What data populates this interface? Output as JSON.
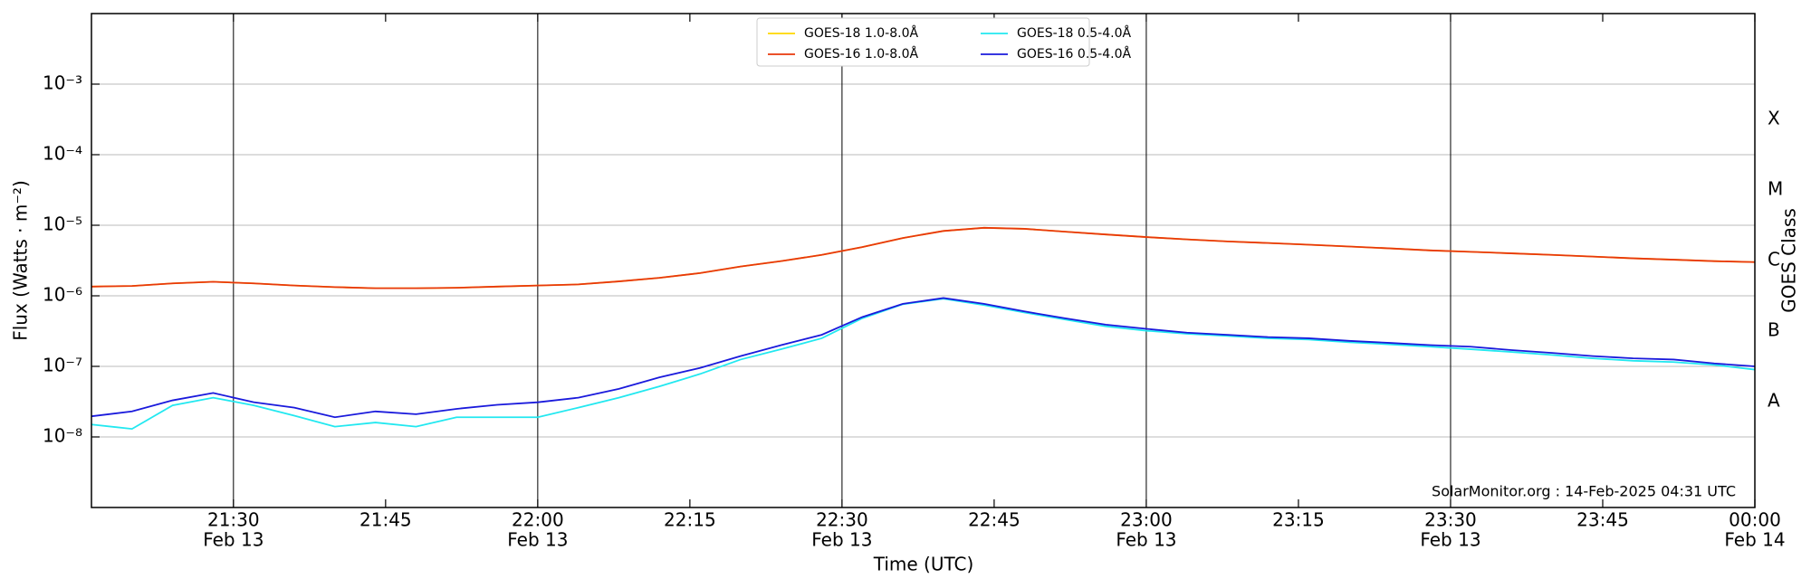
{
  "chart_data": {
    "type": "line",
    "xlabel": "Time (UTC)",
    "ylabel": "Flux (Watts · m⁻²)",
    "y2label": "GOES Class",
    "annotation": "SolarMonitor.org : 14-Feb-2025 04:31 UTC",
    "yscale": "log",
    "grid": true,
    "legend": "upper center",
    "xlim": [
      "21:16",
      "00:00"
    ],
    "ylim": [
      1e-09,
      0.01
    ],
    "y2lim": [
      1e-09,
      0.01
    ],
    "yticks": [
      {
        "value": 1e-08,
        "label": "10⁻⁸"
      },
      {
        "value": 1e-07,
        "label": "10⁻⁷"
      },
      {
        "value": 1e-06,
        "label": "10⁻⁶"
      },
      {
        "value": 1e-05,
        "label": "10⁻⁵"
      },
      {
        "value": 0.0001,
        "label": "10⁻⁴"
      },
      {
        "value": 0.001,
        "label": "10⁻³"
      }
    ],
    "y2ticks": [
      {
        "value": 3.162e-08,
        "label": "A"
      },
      {
        "value": 3.162e-07,
        "label": "B"
      },
      {
        "value": 3.162e-06,
        "label": "C"
      },
      {
        "value": 3.162e-05,
        "label": "M"
      },
      {
        "value": 0.0003162,
        "label": "X"
      }
    ],
    "xticks": [
      {
        "value": "21:30",
        "label": "21:30",
        "sublabel": "Feb 13"
      },
      "21:45",
      {
        "value": "22:00",
        "label": "22:00",
        "sublabel": "Feb 13"
      },
      "22:15",
      {
        "value": "22:30",
        "label": "22:30",
        "sublabel": "Feb 13"
      },
      "22:45",
      {
        "value": "23:00",
        "label": "23:00",
        "sublabel": "Feb 13"
      },
      "23:15",
      {
        "value": "23:30",
        "label": "23:30",
        "sublabel": "Feb 13"
      },
      "23:45",
      {
        "value": "00:00",
        "label": "00:00",
        "sublabel": "Feb 14"
      }
    ],
    "x": [
      "21:16",
      "21:20",
      "21:24",
      "21:28",
      "21:32",
      "21:36",
      "21:40",
      "21:44",
      "21:48",
      "21:52",
      "21:56",
      "22:00",
      "22:04",
      "22:08",
      "22:12",
      "22:16",
      "22:20",
      "22:24",
      "22:28",
      "22:32",
      "22:36",
      "22:40",
      "22:44",
      "22:48",
      "22:52",
      "22:56",
      "23:00",
      "23:04",
      "23:08",
      "23:12",
      "23:16",
      "23:20",
      "23:24",
      "23:28",
      "23:32",
      "23:36",
      "23:40",
      "23:44",
      "23:48",
      "23:52",
      "23:56",
      "00:00"
    ],
    "series": [
      {
        "name": "GOES-18 1.0-8.0Å",
        "color": "#ffd700",
        "values": [
          1.35e-06,
          1.38e-06,
          1.5e-06,
          1.58e-06,
          1.5e-06,
          1.4e-06,
          1.33e-06,
          1.28e-06,
          1.28e-06,
          1.3e-06,
          1.35e-06,
          1.4e-06,
          1.45e-06,
          1.6e-06,
          1.8e-06,
          2.1e-06,
          2.6e-06,
          3.1e-06,
          3.8e-06,
          4.9e-06,
          6.6e-06,
          8.3e-06,
          9.2e-06,
          8.9e-06,
          8.1e-06,
          7.4e-06,
          6.8e-06,
          6.3e-06,
          5.9e-06,
          5.6e-06,
          5.3e-06,
          5e-06,
          4.7e-06,
          4.4e-06,
          4.2e-06,
          4e-06,
          3.8e-06,
          3.6e-06,
          3.4e-06,
          3.25e-06,
          3.1e-06,
          3e-06
        ]
      },
      {
        "name": "GOES-16 1.0-8.0Å",
        "color": "#e8380c",
        "values": [
          1.35e-06,
          1.38e-06,
          1.5e-06,
          1.58e-06,
          1.5e-06,
          1.4e-06,
          1.33e-06,
          1.28e-06,
          1.28e-06,
          1.3e-06,
          1.35e-06,
          1.4e-06,
          1.45e-06,
          1.6e-06,
          1.8e-06,
          2.1e-06,
          2.6e-06,
          3.1e-06,
          3.8e-06,
          4.9e-06,
          6.6e-06,
          8.3e-06,
          9.2e-06,
          8.9e-06,
          8.1e-06,
          7.4e-06,
          6.8e-06,
          6.3e-06,
          5.9e-06,
          5.6e-06,
          5.3e-06,
          5e-06,
          4.7e-06,
          4.4e-06,
          4.2e-06,
          4e-06,
          3.8e-06,
          3.6e-06,
          3.4e-06,
          3.25e-06,
          3.1e-06,
          3e-06
        ]
      },
      {
        "name": "GOES-18 0.5-4.0Å",
        "color": "#22e8f0",
        "values": [
          1.5e-08,
          1.3e-08,
          2.8e-08,
          3.6e-08,
          2.8e-08,
          2e-08,
          1.4e-08,
          1.6e-08,
          1.4e-08,
          1.9e-08,
          1.9e-08,
          1.9e-08,
          2.6e-08,
          3.6e-08,
          5.2e-08,
          7.8e-08,
          1.25e-07,
          1.75e-07,
          2.5e-07,
          4.8e-07,
          7.6e-07,
          9.1e-07,
          7.4e-07,
          5.8e-07,
          4.6e-07,
          3.7e-07,
          3.2e-07,
          2.9e-07,
          2.7e-07,
          2.5e-07,
          2.4e-07,
          2.2e-07,
          2.05e-07,
          1.9e-07,
          1.75e-07,
          1.6e-07,
          1.45e-07,
          1.3e-07,
          1.2e-07,
          1.15e-07,
          1.05e-07,
          9e-08
        ]
      },
      {
        "name": "GOES-16 0.5-4.0Å",
        "color": "#1a1adc",
        "values": [
          1.96e-08,
          2.3e-08,
          3.3e-08,
          4.2e-08,
          3.1e-08,
          2.6e-08,
          1.9e-08,
          2.3e-08,
          2.1e-08,
          2.5e-08,
          2.85e-08,
          3.1e-08,
          3.6e-08,
          4.8e-08,
          7e-08,
          9.5e-08,
          1.4e-07,
          2e-07,
          2.8e-07,
          5e-07,
          7.7e-07,
          9.3e-07,
          7.7e-07,
          6e-07,
          4.8e-07,
          3.9e-07,
          3.4e-07,
          3e-07,
          2.8e-07,
          2.6e-07,
          2.5e-07,
          2.3e-07,
          2.15e-07,
          2e-07,
          1.9e-07,
          1.7e-07,
          1.55e-07,
          1.4e-07,
          1.3e-07,
          1.25e-07,
          1.1e-07,
          1e-07
        ]
      }
    ]
  }
}
